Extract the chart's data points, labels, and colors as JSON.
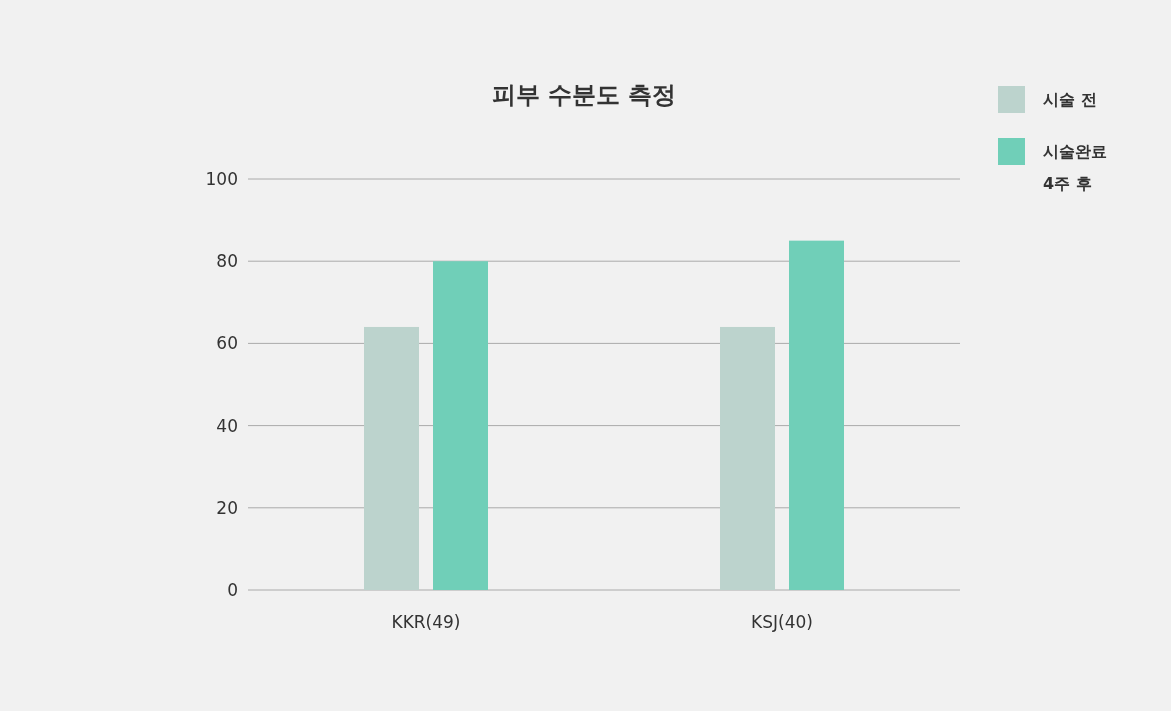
{
  "chart_data": {
    "type": "bar",
    "title": "피부 수분도 측정",
    "categories": [
      "KKR(49)",
      "KSJ(40)"
    ],
    "series": [
      {
        "name": "시술 전",
        "color": "#bcd3cd",
        "values": [
          64,
          64
        ]
      },
      {
        "name": "시술완료 4주 후",
        "color": "#70cfb8",
        "values": [
          80,
          85
        ]
      }
    ],
    "ylim": [
      0,
      100
    ],
    "yticks": [
      0,
      20,
      40,
      60,
      80,
      100
    ],
    "grid": "y",
    "legend": "top right"
  }
}
